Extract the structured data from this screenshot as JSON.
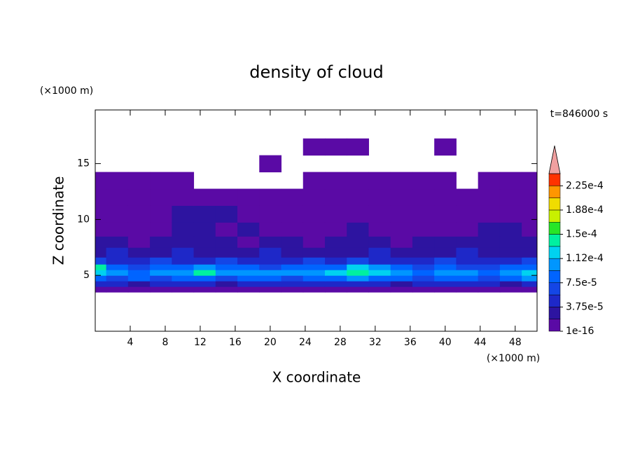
{
  "chart_data": {
    "type": "contour",
    "title": "density of cloud",
    "x_label": "X coordinate",
    "y_label": "Z coordinate",
    "x_unit": "(×1000 m)",
    "y_unit": "(×1000 m)",
    "time_label": "t=846000 s",
    "x": [
      0,
      2.5,
      5,
      7.5,
      10,
      12.5,
      15,
      17.5,
      20,
      22.5,
      25,
      27.5,
      30,
      32.5,
      35,
      37.5,
      40,
      42.5,
      45,
      47.5,
      50
    ],
    "z": [
      3.75,
      4.25,
      4.75,
      5.25,
      5.75,
      6.25,
      7,
      8,
      9,
      10.5,
      12,
      13.5,
      15,
      16.5
    ],
    "values": [
      [
        1e-06,
        1e-06,
        1e-06,
        1e-06,
        1e-06,
        1e-06,
        1e-06,
        1e-06,
        1e-06,
        1e-06,
        1e-06,
        1e-06,
        1e-06,
        1e-06,
        1e-06,
        1e-06,
        1e-06,
        1e-06,
        1e-06,
        1e-06,
        1e-06
      ],
      [
        4e-05,
        4e-05,
        2e-05,
        4e-05,
        4e-05,
        4e-05,
        2e-05,
        4e-05,
        4e-05,
        4e-05,
        4e-05,
        4e-05,
        4e-05,
        4e-05,
        2e-05,
        4e-05,
        4e-05,
        4e-05,
        4e-05,
        2e-05,
        4e-05
      ],
      [
        8e-05,
        6e-05,
        8e-05,
        6e-05,
        8e-05,
        8e-05,
        6e-05,
        8e-05,
        8e-05,
        6e-05,
        8e-05,
        8e-05,
        0.0001,
        8e-05,
        8e-05,
        6e-05,
        8e-05,
        8e-05,
        6e-05,
        8e-05,
        0.0001
      ],
      [
        0.00012,
        0.0001,
        8e-05,
        0.0001,
        0.0001,
        0.00014,
        0.0001,
        0.0001,
        0.0001,
        0.0001,
        0.0001,
        0.00012,
        0.00014,
        0.00012,
        0.0001,
        8e-05,
        0.0001,
        0.0001,
        8e-05,
        0.0001,
        0.00012
      ],
      [
        0.00014,
        8e-05,
        6e-05,
        8e-05,
        8e-05,
        0.0001,
        8e-05,
        8e-05,
        6e-05,
        8e-05,
        8e-05,
        8e-05,
        0.00012,
        0.0001,
        8e-05,
        6e-05,
        8e-05,
        6e-05,
        6e-05,
        8e-05,
        8e-05
      ],
      [
        6e-05,
        4e-05,
        4e-05,
        6e-05,
        4e-05,
        4e-05,
        6e-05,
        4e-05,
        4e-05,
        4e-05,
        6e-05,
        4e-05,
        6e-05,
        4e-05,
        4e-05,
        4e-05,
        6e-05,
        4e-05,
        4e-05,
        4e-05,
        6e-05
      ],
      [
        2e-05,
        4e-05,
        2e-05,
        2e-05,
        4e-05,
        2e-05,
        2e-05,
        2e-05,
        4e-05,
        2e-05,
        2e-05,
        2e-05,
        2e-05,
        4e-05,
        2e-05,
        2e-05,
        2e-05,
        4e-05,
        2e-05,
        2e-05,
        2e-05
      ],
      [
        2e-05,
        2e-05,
        1e-06,
        2e-05,
        2e-05,
        2e-05,
        2e-05,
        1e-06,
        2e-05,
        2e-05,
        1e-06,
        2e-05,
        2e-05,
        2e-05,
        1e-06,
        2e-05,
        2e-05,
        2e-05,
        2e-05,
        2e-05,
        2e-05
      ],
      [
        1e-06,
        1e-06,
        1e-06,
        1e-06,
        2e-05,
        2e-05,
        1e-06,
        2e-05,
        1e-06,
        1e-06,
        1e-06,
        1e-06,
        2e-05,
        1e-06,
        1e-06,
        1e-06,
        1e-06,
        1e-06,
        2e-05,
        2e-05,
        1e-06
      ],
      [
        1e-06,
        1e-06,
        1e-06,
        1e-06,
        2e-05,
        2e-05,
        2e-05,
        1e-06,
        1e-06,
        1e-06,
        1e-06,
        1e-06,
        1e-06,
        1e-06,
        1e-06,
        1e-06,
        1e-06,
        1e-06,
        1e-06,
        1e-06,
        1e-06
      ],
      [
        1e-06,
        1e-06,
        1e-06,
        1e-06,
        1e-06,
        1e-06,
        1e-06,
        1e-06,
        1e-06,
        1e-06,
        1e-06,
        1e-06,
        1e-06,
        1e-06,
        1e-06,
        1e-06,
        1e-06,
        1e-06,
        1e-06,
        1e-06,
        1e-06
      ],
      [
        1e-06,
        1e-06,
        1e-06,
        1e-06,
        1e-06,
        null,
        null,
        null,
        null,
        null,
        1e-06,
        1e-06,
        1e-06,
        1e-06,
        1e-06,
        1e-06,
        1e-06,
        null,
        1e-06,
        1e-06,
        1e-06
      ],
      [
        null,
        null,
        null,
        null,
        null,
        null,
        null,
        null,
        1e-06,
        null,
        null,
        null,
        null,
        null,
        null,
        null,
        null,
        null,
        null,
        null,
        null
      ],
      [
        null,
        null,
        null,
        null,
        null,
        null,
        null,
        null,
        null,
        null,
        1e-06,
        1e-06,
        1e-06,
        null,
        null,
        null,
        1e-06,
        null,
        null,
        null,
        null
      ]
    ],
    "xlim": [
      0,
      50.5
    ],
    "ylim": [
      0,
      19.8
    ],
    "xticks": [
      4,
      8,
      12,
      16,
      20,
      24,
      28,
      32,
      36,
      40,
      44,
      48
    ],
    "yticks": [
      5,
      10,
      15
    ],
    "colorbar": {
      "levels": [
        1e-16,
        1.875e-05,
        3.75e-05,
        5.625e-05,
        7.5e-05,
        9.375e-05,
        0.0001125,
        0.00013125,
        0.00015,
        0.00016875,
        0.0001875,
        0.00020625,
        0.000225,
        0.00024375
      ],
      "colors": [
        "#5a0aa5",
        "#2d14a0",
        "#1e28c8",
        "#1446e6",
        "#0064ff",
        "#0096ff",
        "#00d2f0",
        "#00f0a0",
        "#28e628",
        "#c8f000",
        "#f0dc00",
        "#ff9600",
        "#ff3200"
      ],
      "over_color": "#f0a0a0",
      "ticks": [
        {
          "value": 1e-16,
          "label": "1e-16"
        },
        {
          "value": 3.75e-05,
          "label": "3.75e-5"
        },
        {
          "value": 7.5e-05,
          "label": "7.5e-5"
        },
        {
          "value": 0.0001125,
          "label": "1.12e-4"
        },
        {
          "value": 0.00015,
          "label": "1.5e-4"
        },
        {
          "value": 0.0001875,
          "label": "1.88e-4"
        },
        {
          "value": 0.000225,
          "label": "2.25e-4"
        }
      ]
    }
  }
}
